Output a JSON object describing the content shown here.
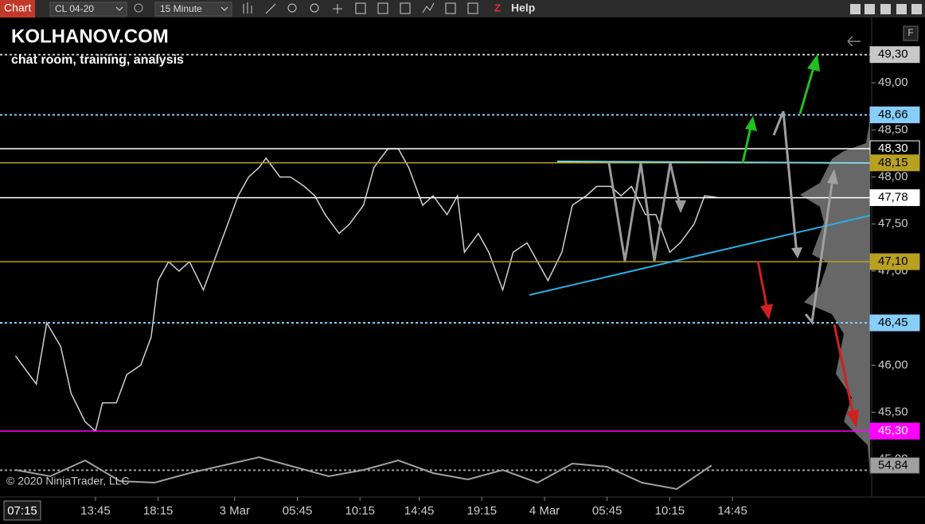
{
  "toolbar": {
    "tab": "Chart",
    "instrument": "CL 04-20",
    "interval": "15 Minute",
    "help": "Help"
  },
  "watermark": {
    "title": "KOLHANOV.COM",
    "subtitle": "chat room, training, analysis",
    "copyright": "© 2020 NinjaTrader, LLC"
  },
  "panel_button": "F",
  "cursor_time": "07:15",
  "chart_data": {
    "type": "line",
    "color": "#d0d0d0",
    "x": [
      1,
      3,
      7,
      10,
      14,
      17,
      21,
      24,
      26,
      30,
      33,
      37,
      40,
      42,
      45,
      48,
      51,
      55,
      58,
      62,
      65,
      68,
      71,
      73,
      77,
      80,
      84,
      87,
      90,
      94,
      97,
      101,
      104,
      108,
      111,
      114,
      118,
      121,
      125,
      128,
      130,
      134,
      137,
      141,
      144,
      148,
      151,
      154,
      158,
      161,
      165,
      168,
      172,
      175,
      178,
      182,
      185,
      189,
      192,
      196,
      199,
      203
    ],
    "values": [
      46.1,
      46.0,
      45.8,
      46.45,
      46.2,
      45.7,
      45.4,
      45.3,
      45.6,
      45.6,
      45.9,
      46.0,
      46.3,
      46.9,
      47.1,
      47.0,
      47.1,
      46.8,
      47.1,
      47.5,
      47.8,
      48.0,
      48.1,
      48.2,
      48.0,
      48.0,
      47.9,
      47.8,
      47.6,
      47.4,
      47.5,
      47.7,
      48.1,
      48.3,
      48.3,
      48.1,
      47.7,
      47.8,
      47.6,
      47.8,
      47.2,
      47.4,
      47.2,
      46.8,
      47.2,
      47.3,
      47.1,
      46.9,
      47.2,
      47.7,
      47.8,
      47.9,
      47.9,
      47.8,
      47.9,
      47.6,
      47.6,
      47.2,
      47.3,
      47.5,
      47.8,
      47.78
    ],
    "xlim": [
      0,
      247
    ],
    "xticks": [
      {
        "value": 24,
        "label": "13:45"
      },
      {
        "value": 42,
        "label": "18:15"
      },
      {
        "value": 64,
        "label": "3 Mar"
      },
      {
        "value": 82,
        "label": "05:45"
      },
      {
        "value": 100,
        "label": "10:15"
      },
      {
        "value": 117,
        "label": "14:45"
      },
      {
        "value": 135,
        "label": "19:15"
      },
      {
        "value": 153,
        "label": "4 Mar"
      },
      {
        "value": 171,
        "label": "05:45"
      },
      {
        "value": 189,
        "label": "10:15"
      },
      {
        "value": 207,
        "label": "14:45"
      }
    ],
    "ylim": [
      44.6,
      49.61
    ],
    "yticks": [
      {
        "value": 45,
        "label": "45,00"
      },
      {
        "value": 45.5,
        "label": "45,50"
      },
      {
        "value": 46,
        "label": "46,00"
      },
      {
        "value": 47,
        "label": "47,00"
      },
      {
        "value": 47.5,
        "label": "47,50"
      },
      {
        "value": 48,
        "label": "48,00"
      },
      {
        "value": 48.5,
        "label": "48,50"
      },
      {
        "value": 49,
        "label": "49,00"
      }
    ],
    "levels": [
      {
        "value": 49.3,
        "label": "49,30",
        "color": "#c8c8c8",
        "text_color": "#000000",
        "dotted": true
      },
      {
        "value": 48.66,
        "label": "48,66",
        "color": "#87cefa",
        "text_color": "#000000",
        "dotted": true
      },
      {
        "value": 48.3,
        "label": "48,30",
        "color": "#ffffff",
        "text_color": "#ffffff",
        "dotted": false
      },
      {
        "value": 48.15,
        "label": "48,15",
        "color": "#b8a020",
        "text_color": "#000000",
        "dotted": false
      },
      {
        "value": 47.78,
        "label": "47,78",
        "color": "#ffffff",
        "text_color": "#000000",
        "dotted": false
      },
      {
        "value": 47.1,
        "label": "47,10",
        "color": "#b8a020",
        "text_color": "#000000",
        "dotted": false
      },
      {
        "value": 46.45,
        "label": "46,45",
        "color": "#87cefa",
        "text_color": "#000000",
        "dotted": true
      },
      {
        "value": 45.3,
        "label": "45,30",
        "color": "#ff00ff",
        "text_color": "#ffffff",
        "dotted": false
      }
    ],
    "indicator": {
      "x": [
        1,
        11,
        21,
        31,
        41,
        51,
        61,
        71,
        81,
        91,
        101,
        111,
        121,
        131,
        141,
        151,
        161,
        171,
        181,
        191,
        201
      ],
      "values": [
        52,
        48,
        58,
        45,
        44,
        50,
        55,
        60,
        54,
        48,
        52,
        58,
        50,
        46,
        52,
        44,
        56,
        54,
        44,
        40,
        54.84
      ],
      "ylim": [
        35,
        70
      ],
      "value": 54.84,
      "label": "54,84",
      "color": "#a0a0a0"
    }
  }
}
